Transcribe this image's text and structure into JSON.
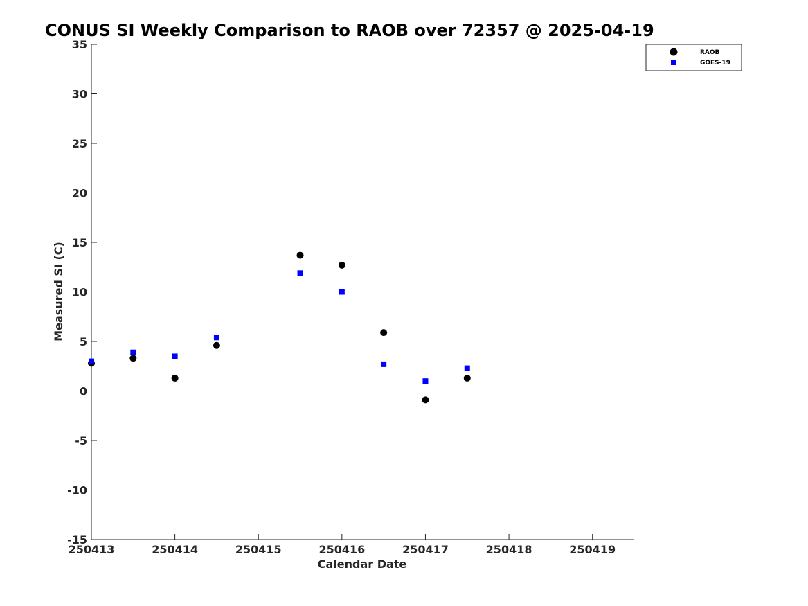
{
  "chart_data": {
    "type": "scatter",
    "title": "CONUS SI Weekly Comparison to RAOB over 72357 @ 2025-04-19",
    "xlabel": "Calendar Date",
    "ylabel": "Measured SI (C)",
    "xlim": [
      250413,
      250419.5
    ],
    "ylim": [
      -15,
      35
    ],
    "xticks": [
      "250413",
      "250414",
      "250415",
      "250416",
      "250417",
      "250418",
      "250419"
    ],
    "yticks": [
      "-15",
      "-10",
      "-5",
      "0",
      "5",
      "10",
      "15",
      "20",
      "25",
      "30",
      "35"
    ],
    "grid": false,
    "legend_position": "top-right",
    "series": [
      {
        "name": "RAOB",
        "marker": "circle",
        "color": "#000000",
        "x": [
          250413,
          250413.5,
          250414,
          250414.5,
          250415.5,
          250416,
          250416.5,
          250417,
          250417.5
        ],
        "y": [
          2.8,
          3.3,
          1.3,
          4.6,
          13.7,
          12.7,
          5.9,
          -0.9,
          1.3
        ]
      },
      {
        "name": "GOES-19",
        "marker": "square",
        "color": "#0000ff",
        "x": [
          250413,
          250413.5,
          250414,
          250414.5,
          250415.5,
          250416,
          250416.5,
          250417,
          250417.5
        ],
        "y": [
          3.0,
          3.9,
          3.5,
          5.4,
          11.9,
          10.0,
          2.7,
          1.0,
          2.3
        ]
      }
    ]
  }
}
